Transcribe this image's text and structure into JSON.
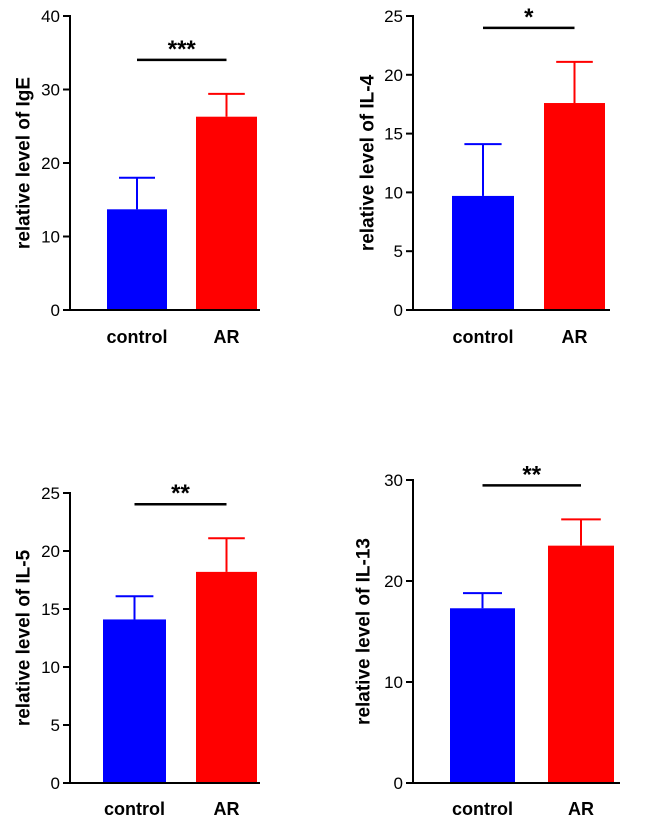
{
  "colors": {
    "control": "#0000ff",
    "AR": "#ff0000",
    "axis": "#000000"
  },
  "chart_data": [
    {
      "type": "bar",
      "categories": [
        "control",
        "AR"
      ],
      "values": [
        13.7,
        26.3
      ],
      "errors": [
        4.3,
        3.1
      ],
      "ylabel": "relative level of IgE",
      "ylim": [
        0,
        40
      ],
      "yticks": [
        0,
        10,
        20,
        30,
        40
      ],
      "tick_labels": [
        "0",
        "10",
        "20",
        "30",
        "40"
      ],
      "significance": "***"
    },
    {
      "type": "bar",
      "categories": [
        "control",
        "AR"
      ],
      "values": [
        9.7,
        17.6
      ],
      "errors": [
        4.4,
        3.5
      ],
      "ylabel": "relative level of IL-4",
      "ylim": [
        0,
        25
      ],
      "yticks": [
        0,
        5,
        10,
        15,
        20,
        25
      ],
      "tick_labels": [
        "0",
        "5",
        "10",
        "15",
        "20",
        "25"
      ],
      "significance": "*"
    },
    {
      "type": "bar",
      "categories": [
        "control",
        "AR"
      ],
      "values": [
        14.1,
        18.2
      ],
      "errors": [
        2.0,
        2.9
      ],
      "ylabel": "relative level of IL-5",
      "ylim": [
        0,
        25
      ],
      "yticks": [
        0,
        5,
        10,
        15,
        20,
        25
      ],
      "tick_labels": [
        "0",
        "5",
        "10",
        "15",
        "20",
        "25"
      ],
      "significance": "**"
    },
    {
      "type": "bar",
      "categories": [
        "control",
        "AR"
      ],
      "values": [
        17.3,
        23.5
      ],
      "errors": [
        1.5,
        2.6
      ],
      "ylabel": "relative level of IL-13",
      "ylim": [
        0,
        30
      ],
      "yticks": [
        0,
        10,
        20,
        30
      ],
      "tick_labels": [
        "0",
        "10",
        "20",
        "30"
      ],
      "significance": "**"
    }
  ]
}
